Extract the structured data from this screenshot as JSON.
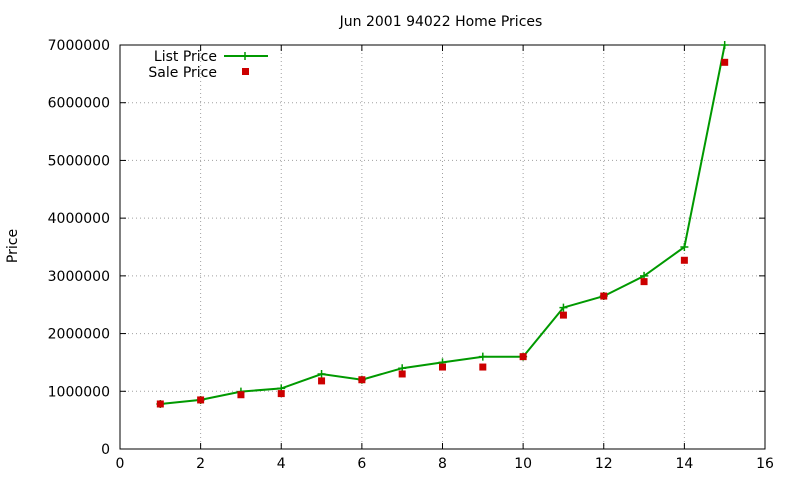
{
  "chart_data": {
    "type": "line",
    "title": "Jun 2001 94022 Home Prices",
    "xlabel": "",
    "ylabel": "Price",
    "xlim": [
      0,
      16
    ],
    "ylim": [
      0,
      7000000
    ],
    "x_ticks": [
      "0",
      "2",
      "4",
      "6",
      "8",
      "10",
      "12",
      "14",
      "16"
    ],
    "y_ticks": [
      "0",
      "1000000",
      "2000000",
      "3000000",
      "4000000",
      "5000000",
      "6000000",
      "7000000"
    ],
    "grid": true,
    "legend_position": "top-left",
    "x": [
      1,
      2,
      3,
      4,
      5,
      6,
      7,
      8,
      9,
      10,
      11,
      12,
      13,
      14,
      15
    ],
    "series": [
      {
        "name": "List Price",
        "style": "line-with-plus-markers",
        "color": "#009900",
        "values": [
          780000,
          850000,
          995000,
          1050000,
          1300000,
          1200000,
          1400000,
          1500000,
          1600000,
          1600000,
          2450000,
          2650000,
          3000000,
          3500000,
          7000000
        ]
      },
      {
        "name": "Sale Price",
        "style": "square-markers",
        "color": "#cc0000",
        "values": [
          780000,
          850000,
          940000,
          960000,
          1180000,
          1200000,
          1300000,
          1420000,
          1420000,
          1600000,
          2320000,
          2650000,
          2900000,
          3270000,
          6700000
        ]
      }
    ]
  }
}
